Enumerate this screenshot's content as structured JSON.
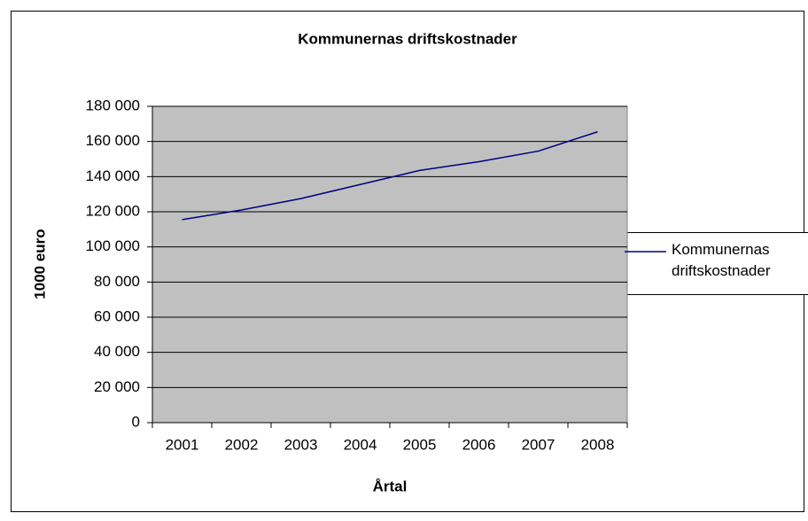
{
  "chart_data": {
    "type": "line",
    "title": "Kommunernas driftskostnader",
    "xlabel": "Årtal",
    "ylabel": "1000 euro",
    "categories": [
      "2001",
      "2002",
      "2003",
      "2004",
      "2005",
      "2006",
      "2007",
      "2008"
    ],
    "series": [
      {
        "name": "Kommunernas driftskostnader",
        "color": "#000080",
        "values": [
          115500,
          121000,
          127500,
          135500,
          143500,
          148500,
          154500,
          165500
        ]
      }
    ],
    "ylim": [
      0,
      180000
    ],
    "yticks": [
      0,
      {
        "value": 20000,
        "label": "20 000"
      },
      {
        "value": 40000,
        "label": "40 000"
      },
      {
        "value": 60000,
        "label": "60 000"
      },
      {
        "value": 80000,
        "label": "80 000"
      },
      {
        "value": 100000,
        "label": "100 000"
      },
      {
        "value": 120000,
        "label": "120 000"
      },
      {
        "value": 140000,
        "label": "140 000"
      },
      {
        "value": 160000,
        "label": "160 000"
      },
      {
        "value": 180000,
        "label": "180 000"
      }
    ],
    "grid": true,
    "plot_background": "#c0c0c0",
    "legend": "right"
  }
}
